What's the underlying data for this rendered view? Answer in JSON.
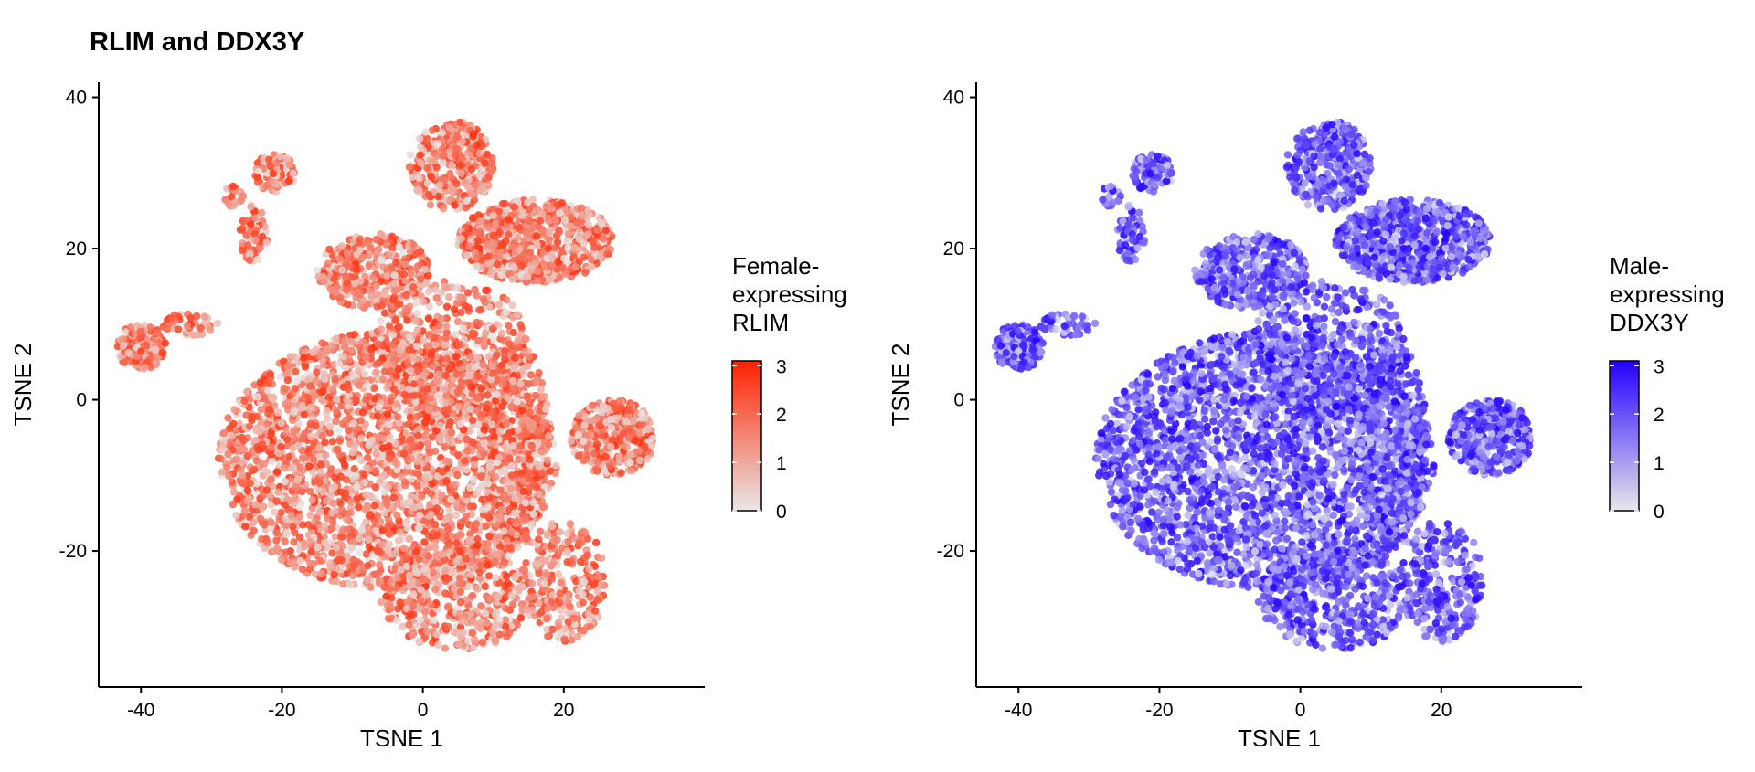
{
  "title": "RLIM and DDX3Y",
  "chart_data": [
    {
      "type": "scatter",
      "name": "rlim-panel",
      "xlabel": "TSNE 1",
      "ylabel": "TSNE 2",
      "xlim": [
        -46,
        40
      ],
      "ylim": [
        -38,
        42
      ],
      "xticks": [
        -40,
        -20,
        0,
        20
      ],
      "yticks": [
        -20,
        0,
        20,
        40
      ],
      "legend": {
        "title_lines": [
          "Female-",
          "expressing",
          "RLIM"
        ],
        "ticks": [
          0,
          1,
          2,
          3
        ],
        "range": [
          0,
          3.1
        ],
        "low_color": "#e8e8e8",
        "high_color": "#ff2200",
        "placement": "right"
      },
      "point_color_low": "#e6e6e6",
      "point_color_high": "#ff3311",
      "clusters": [
        {
          "label": "main-body",
          "cx": -5,
          "cy": -8,
          "rx": 24,
          "ry": 17,
          "n": 2600
        },
        {
          "label": "mid-upper",
          "cx": 4,
          "cy": 7,
          "rx": 11,
          "ry": 9,
          "n": 450
        },
        {
          "label": "right-edge",
          "cx": 13,
          "cy": -6,
          "rx": 5,
          "ry": 14,
          "n": 350
        },
        {
          "label": "bottom",
          "cx": 5,
          "cy": -26,
          "rx": 11,
          "ry": 7,
          "n": 450
        },
        {
          "label": "bottom-right",
          "cx": 20,
          "cy": -24,
          "rx": 6,
          "ry": 8,
          "n": 260
        },
        {
          "label": "top-center",
          "cx": 4,
          "cy": 31,
          "rx": 6,
          "ry": 6,
          "n": 320
        },
        {
          "label": "top-right",
          "cx": 16,
          "cy": 21,
          "rx": 11,
          "ry": 5.5,
          "n": 700
        },
        {
          "label": "right-arm",
          "cx": 27,
          "cy": -5,
          "rx": 6,
          "ry": 5,
          "n": 380
        },
        {
          "label": "upper-mid",
          "cx": -7,
          "cy": 17,
          "rx": 8,
          "ry": 5,
          "n": 350
        },
        {
          "label": "far-left",
          "cx": -40,
          "cy": 7,
          "rx": 3.5,
          "ry": 3,
          "n": 150
        },
        {
          "label": "left-strip",
          "cx": -33,
          "cy": 10,
          "rx": 4,
          "ry": 1.5,
          "n": 45
        },
        {
          "label": "upper-left",
          "cx": -21,
          "cy": 30,
          "rx": 3,
          "ry": 2.5,
          "n": 80
        },
        {
          "label": "left-mid",
          "cx": -24,
          "cy": 22,
          "rx": 2,
          "ry": 4,
          "n": 60
        },
        {
          "label": "small-left",
          "cx": -27,
          "cy": 27,
          "rx": 1.5,
          "ry": 1.5,
          "n": 20
        }
      ]
    },
    {
      "type": "scatter",
      "name": "ddx3y-panel",
      "xlabel": "TSNE 1",
      "ylabel": "TSNE 2",
      "xlim": [
        -46,
        40
      ],
      "ylim": [
        -38,
        42
      ],
      "xticks": [
        -40,
        -20,
        0,
        20
      ],
      "yticks": [
        -20,
        0,
        20,
        40
      ],
      "legend": {
        "title_lines": [
          "Male-",
          "expressing",
          "DDX3Y"
        ],
        "ticks": [
          0,
          1,
          2,
          3
        ],
        "range": [
          0,
          3.1
        ],
        "low_color": "#e8e8e8",
        "high_color": "#2200ff",
        "placement": "right"
      },
      "point_color_low": "#dcdcef",
      "point_color_high": "#2200ff",
      "clusters": [
        {
          "label": "main-body",
          "cx": -5,
          "cy": -8,
          "rx": 24,
          "ry": 17,
          "n": 2600
        },
        {
          "label": "mid-upper",
          "cx": 4,
          "cy": 7,
          "rx": 11,
          "ry": 9,
          "n": 450
        },
        {
          "label": "right-edge",
          "cx": 13,
          "cy": -6,
          "rx": 5,
          "ry": 14,
          "n": 350
        },
        {
          "label": "bottom",
          "cx": 5,
          "cy": -26,
          "rx": 11,
          "ry": 7,
          "n": 450
        },
        {
          "label": "bottom-right",
          "cx": 20,
          "cy": -24,
          "rx": 6,
          "ry": 8,
          "n": 260
        },
        {
          "label": "top-center",
          "cx": 4,
          "cy": 31,
          "rx": 6,
          "ry": 6,
          "n": 320
        },
        {
          "label": "top-right",
          "cx": 16,
          "cy": 21,
          "rx": 11,
          "ry": 5.5,
          "n": 700
        },
        {
          "label": "right-arm",
          "cx": 27,
          "cy": -5,
          "rx": 6,
          "ry": 5,
          "n": 380
        },
        {
          "label": "upper-mid",
          "cx": -7,
          "cy": 17,
          "rx": 8,
          "ry": 5,
          "n": 350
        },
        {
          "label": "far-left",
          "cx": -40,
          "cy": 7,
          "rx": 3.5,
          "ry": 3,
          "n": 150
        },
        {
          "label": "left-strip",
          "cx": -33,
          "cy": 10,
          "rx": 4,
          "ry": 1.5,
          "n": 45
        },
        {
          "label": "upper-left",
          "cx": -21,
          "cy": 30,
          "rx": 3,
          "ry": 2.5,
          "n": 80
        },
        {
          "label": "left-mid",
          "cx": -24,
          "cy": 22,
          "rx": 2,
          "ry": 4,
          "n": 60
        },
        {
          "label": "small-left",
          "cx": -27,
          "cy": 27,
          "rx": 1.5,
          "ry": 1.5,
          "n": 20
        }
      ]
    }
  ]
}
